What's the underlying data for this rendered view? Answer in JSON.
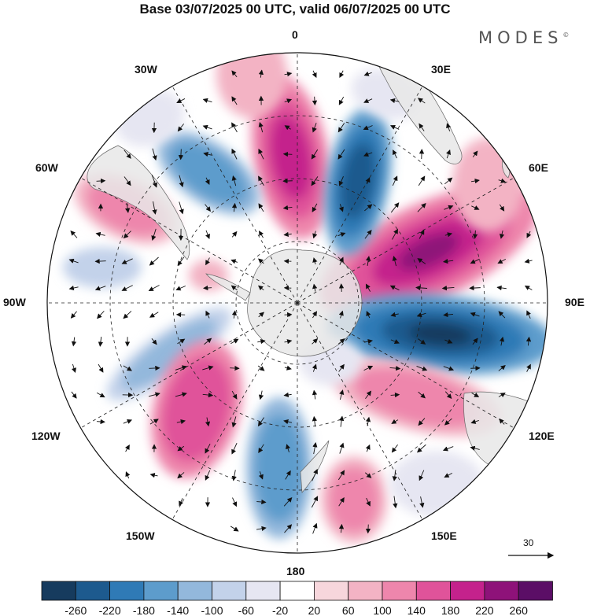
{
  "title": "Base 03/07/2025 00 UTC, valid 06/07/2025 00 UTC",
  "brand": "MODES",
  "brand_mark": "©",
  "longitude_labels": {
    "lon_0": "0",
    "lon_30e": "30E",
    "lon_60e": "60E",
    "lon_90e": "90E",
    "lon_120e": "120E",
    "lon_150e": "150E",
    "lon_180": "180",
    "lon_150w": "150W",
    "lon_120w": "120W",
    "lon_90w": "90W",
    "lon_60w": "60W",
    "lon_30w": "30W"
  },
  "reference_vector": {
    "value": "30"
  },
  "colorbar": {
    "labels": [
      "-260",
      "-220",
      "-180",
      "-140",
      "-100",
      "-60",
      "-20",
      "20",
      "60",
      "100",
      "140",
      "180",
      "220",
      "260"
    ],
    "colors": [
      "#163b5e",
      "#1d5a8e",
      "#2f7ab6",
      "#5d9ccc",
      "#93b8dc",
      "#c3d2ea",
      "#e6e6f2",
      "#ffffff",
      "#f7d6dc",
      "#f3b3c4",
      "#ee86ac",
      "#e0539a",
      "#c4228c",
      "#8e1279",
      "#5b0e66"
    ]
  },
  "colors": {
    "land": "#e8e8e8",
    "coast": "#666666",
    "grid": "#222222",
    "vector": "#111111"
  }
}
